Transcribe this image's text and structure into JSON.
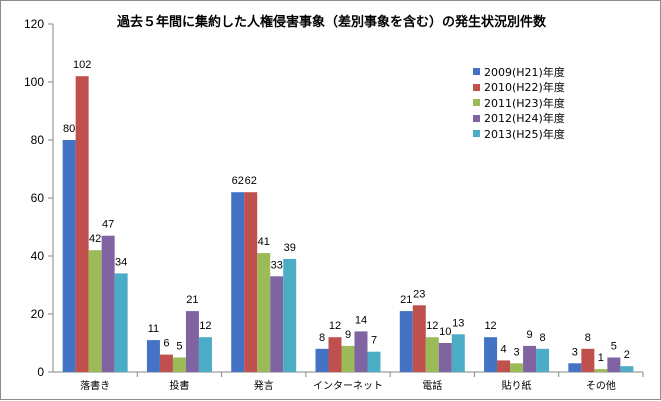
{
  "chart_data": {
    "type": "bar",
    "title": "過去５年間に集約した人権侵害事象（差別事象を含む）の発生状況別件数",
    "xlabel": "",
    "ylabel": "",
    "categories": [
      "落書き",
      "投書",
      "発言",
      "インターネット",
      "電話",
      "貼り紙",
      "その他"
    ],
    "series": [
      {
        "name": "2009(H21)年度",
        "color": "#4472c4",
        "values": [
          80,
          11,
          62,
          8,
          21,
          12,
          3
        ]
      },
      {
        "name": "2010(H22)年度",
        "color": "#c0504d",
        "values": [
          102,
          6,
          62,
          12,
          23,
          4,
          8
        ]
      },
      {
        "name": "2011(H23)年度",
        "color": "#9bbb59",
        "values": [
          42,
          5,
          41,
          9,
          12,
          3,
          1
        ]
      },
      {
        "name": "2012(H24)年度",
        "color": "#8064a2",
        "values": [
          47,
          21,
          33,
          14,
          10,
          9,
          5
        ]
      },
      {
        "name": "2013(H25)年度",
        "color": "#4bacc6",
        "values": [
          34,
          12,
          39,
          7,
          13,
          8,
          2
        ]
      }
    ],
    "ylim": [
      0,
      120
    ],
    "yticks": [
      0,
      20,
      40,
      60,
      80,
      100,
      120
    ],
    "grid": false,
    "legend": "right"
  }
}
